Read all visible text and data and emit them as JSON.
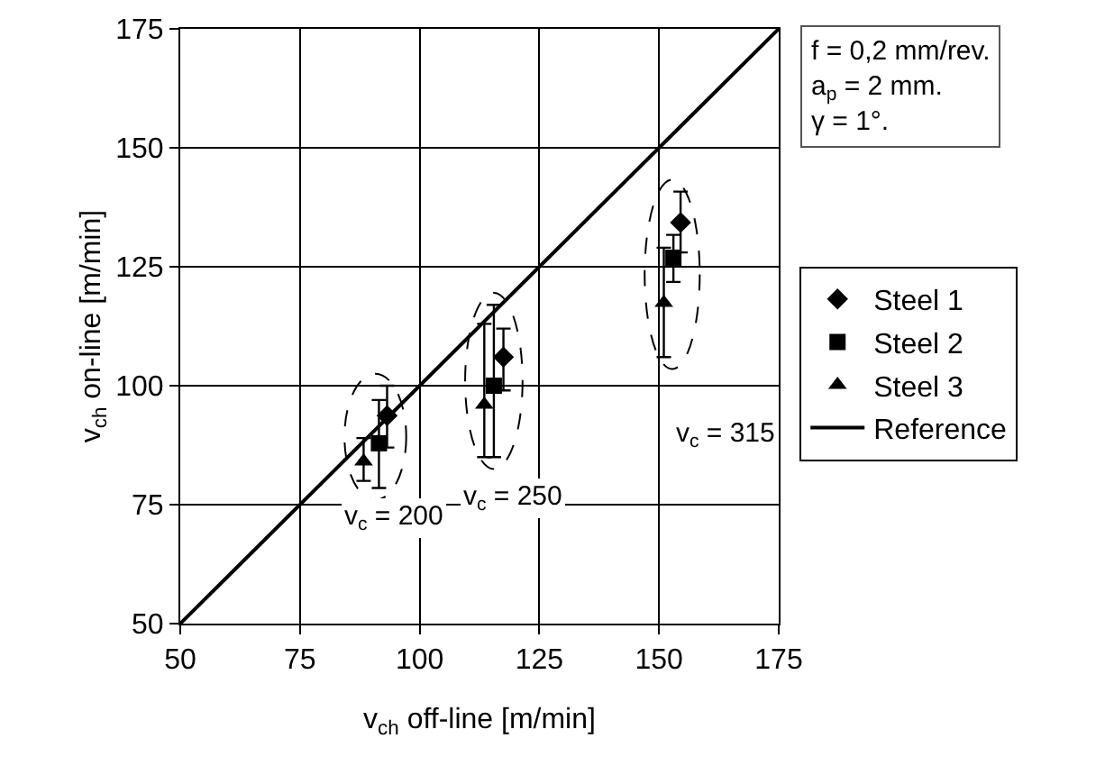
{
  "chart_data": {
    "type": "scatter",
    "xlabel": "v$_{ch}$ off-line [m/min]",
    "ylabel": "v$_{ch}$ on-line [m/min]",
    "xlim": [
      50,
      175
    ],
    "xticks": [
      50,
      75,
      100,
      125,
      150,
      175
    ],
    "ylim": [
      50,
      175
    ],
    "yticks": [
      50,
      75,
      100,
      125,
      150,
      175
    ],
    "grid": true,
    "legend": "right",
    "series": [
      {
        "name": "Steel 1",
        "color": "#000000",
        "marker": "diamond",
        "x": [
          93.2,
          117.5,
          154.5
        ],
        "values": [
          93.7,
          106,
          134.3
        ],
        "errors": [
          [
            87,
            100
          ],
          [
            99,
            112
          ],
          [
            128,
            140.8
          ]
        ]
      },
      {
        "name": "Steel 2",
        "color": "#000000",
        "marker": "square",
        "x": [
          91.5,
          115.5,
          153
        ],
        "values": [
          87.9,
          100,
          126.9
        ],
        "errors": [
          [
            78.5,
            97
          ],
          [
            85,
            117
          ],
          [
            121.8,
            131.7
          ]
        ]
      },
      {
        "name": "Steel 3",
        "color": "#000000",
        "marker": "triangle",
        "x": [
          88.3,
          113.5,
          151
        ],
        "values": [
          84.1,
          96,
          117.4
        ],
        "errors": [
          [
            80,
            89
          ],
          [
            85,
            113
          ],
          [
            106,
            129
          ]
        ]
      },
      {
        "name": "Reference",
        "type": "line",
        "color": "#000000",
        "marker": "none",
        "x": [
          50,
          175
        ],
        "values": [
          50,
          175
        ]
      }
    ],
    "annotations": [
      "v$_{c}$ = 200",
      "v$_{c}$ = 250",
      "v$_{c}$ = 315",
      "f = 0,2 mm/rev.\na$_{p}$ = 2 mm.\nγ = 1°."
    ]
  }
}
